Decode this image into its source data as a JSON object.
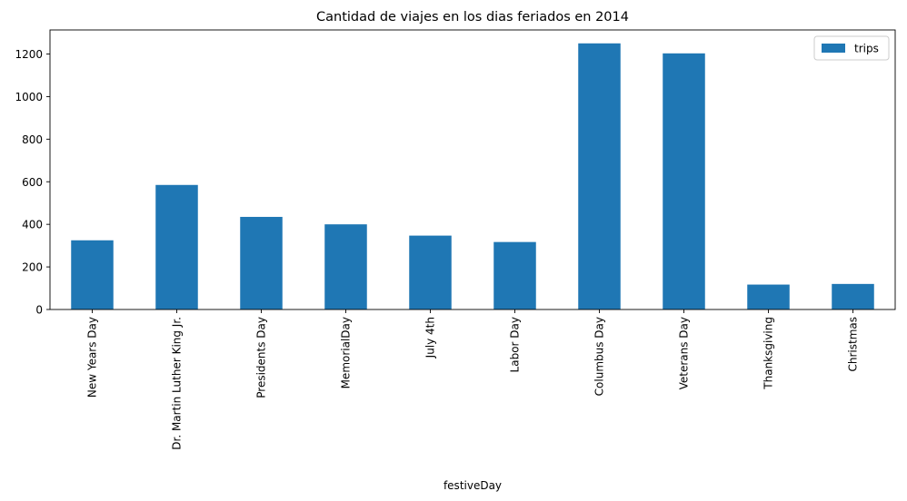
{
  "chart_data": {
    "type": "bar",
    "title": "Cantidad de viajes en los dias feriados en 2014",
    "xlabel": "festiveDay",
    "ylabel": "",
    "categories": [
      "New Years Day",
      "Dr. Martin Luther King Jr.",
      "Presidents Day",
      "MemorialDay",
      "July 4th",
      "Labor Day",
      "Columbus Day",
      "Veterans Day",
      "Thanksgiving",
      "Christmas"
    ],
    "series": [
      {
        "name": "trips",
        "color": "#1f77b4",
        "values": [
          325,
          585,
          435,
          400,
          347,
          317,
          1250,
          1203,
          117,
          120
        ]
      }
    ],
    "ylim": [
      0,
      1313
    ],
    "yticks": [
      0,
      200,
      400,
      600,
      800,
      1000,
      1200
    ],
    "ytick_labels": [
      "0",
      "200",
      "400",
      "600",
      "800",
      "1000",
      "1200"
    ],
    "grid": false,
    "legend_position": "top-right",
    "x_tick_rotation": "vertical"
  }
}
